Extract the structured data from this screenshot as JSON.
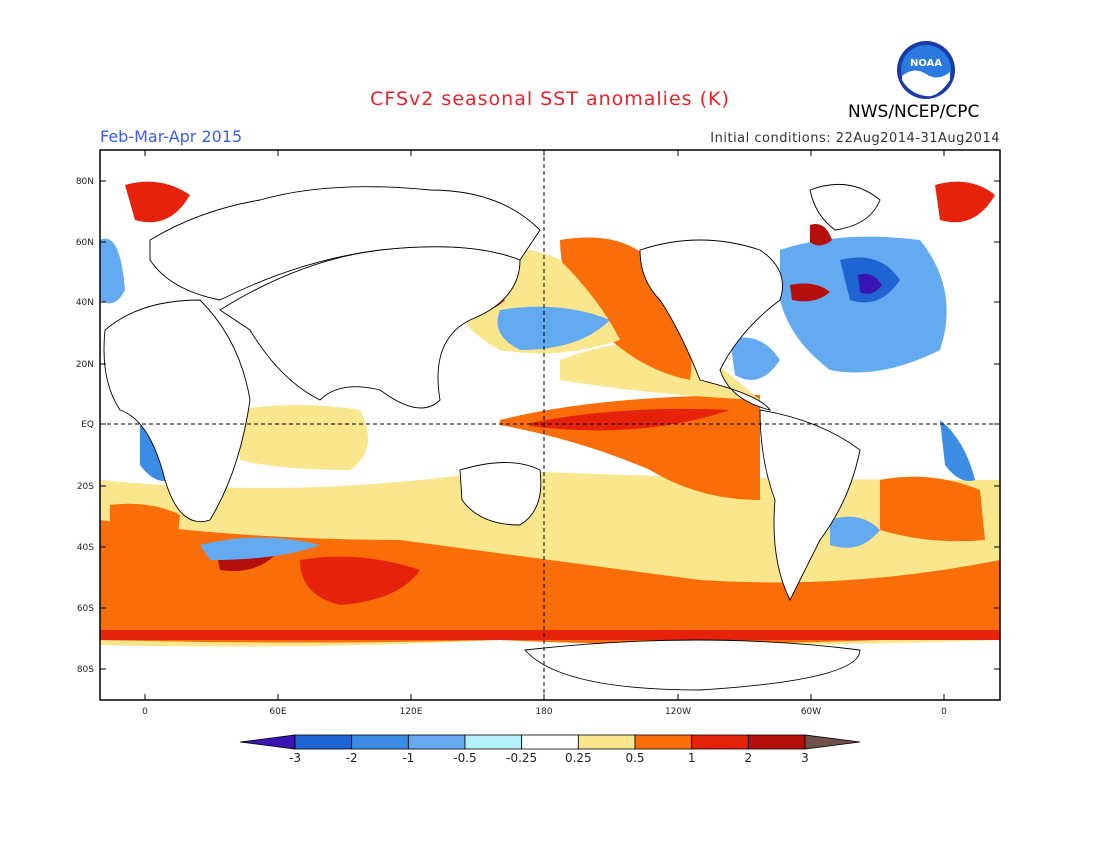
{
  "title": "CFSv2 seasonal SST anomalies (K)",
  "season": "Feb-Mar-Apr 2015",
  "initial_conditions": "Initial conditions: 22Aug2014-31Aug2014",
  "agency": "NWS/NCEP/CPC",
  "logo_text": "NOAA",
  "lat_labels": [
    "80N",
    "60N",
    "40N",
    "20N",
    "EQ",
    "20S",
    "40S",
    "60S",
    "80S"
  ],
  "lon_labels": [
    "0",
    "60E",
    "120E",
    "180",
    "120W",
    "60W",
    "0"
  ],
  "colorbar": {
    "labels": [
      "-3",
      "-2",
      "-1",
      "-0.5",
      "-0.25",
      "0.25",
      "0.5",
      "1",
      "2",
      "3"
    ],
    "colors": [
      "#3a14b4",
      "#1e64d2",
      "#3c8ce6",
      "#64aaf0",
      "#b4f0fa",
      "#ffffff",
      "#fae68c",
      "#fa6e0a",
      "#e6220a",
      "#b40f0a",
      "#70504a"
    ]
  },
  "colors": {
    "title": "#e8202a",
    "season": "#3a5cf0",
    "warm": "#fa6e0a",
    "hot": "#e6220a",
    "cool": "#64aaf0",
    "pale_warm": "#fae68c"
  }
}
